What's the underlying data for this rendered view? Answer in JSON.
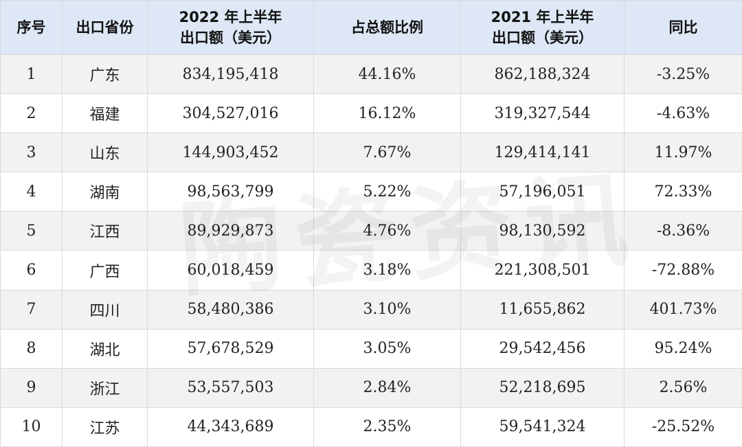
{
  "headers": {
    "rank": "序号",
    "province": "出口省份",
    "export_2022_line1": "2022 年上半年",
    "export_2022_line2": "出口额（美元）",
    "share": "占总额比例",
    "export_2021_line1": "2021 年上半年",
    "export_2021_line2": "出口额（美元）",
    "yoy": "同比"
  },
  "rows": [
    {
      "rank": "1",
      "province": "广东",
      "export_2022": "834,195,418",
      "share": "44.16%",
      "export_2021": "862,188,324",
      "yoy": "-3.25%"
    },
    {
      "rank": "2",
      "province": "福建",
      "export_2022": "304,527,016",
      "share": "16.12%",
      "export_2021": "319,327,544",
      "yoy": "-4.63%"
    },
    {
      "rank": "3",
      "province": "山东",
      "export_2022": "144,903,452",
      "share": "7.67%",
      "export_2021": "129,414,141",
      "yoy": "11.97%"
    },
    {
      "rank": "4",
      "province": "湖南",
      "export_2022": "98,563,799",
      "share": "5.22%",
      "export_2021": "57,196,051",
      "yoy": "72.33%"
    },
    {
      "rank": "5",
      "province": "江西",
      "export_2022": "89,929,873",
      "share": "4.76%",
      "export_2021": "98,130,592",
      "yoy": "-8.36%"
    },
    {
      "rank": "6",
      "province": "广西",
      "export_2022": "60,018,459",
      "share": "3.18%",
      "export_2021": "221,308,501",
      "yoy": "-72.88%"
    },
    {
      "rank": "7",
      "province": "四川",
      "export_2022": "58,480,386",
      "share": "3.10%",
      "export_2021": "11,655,862",
      "yoy": "401.73%"
    },
    {
      "rank": "8",
      "province": "湖北",
      "export_2022": "57,678,529",
      "share": "3.05%",
      "export_2021": "29,542,456",
      "yoy": "95.24%"
    },
    {
      "rank": "9",
      "province": "浙江",
      "export_2022": "53,557,503",
      "share": "2.84%",
      "export_2021": "52,218,695",
      "yoy": "2.56%"
    },
    {
      "rank": "10",
      "province": "江苏",
      "export_2022": "44,343,689",
      "share": "2.35%",
      "export_2021": "59,541,324",
      "yoy": "-25.52%"
    }
  ],
  "watermark": "陶瓷资讯",
  "colors": {
    "header_bg": "#dde7f5",
    "odd_row_bg": "#f2f2f2",
    "even_row_bg": "#ffffff",
    "border": "#d9d9d9"
  }
}
